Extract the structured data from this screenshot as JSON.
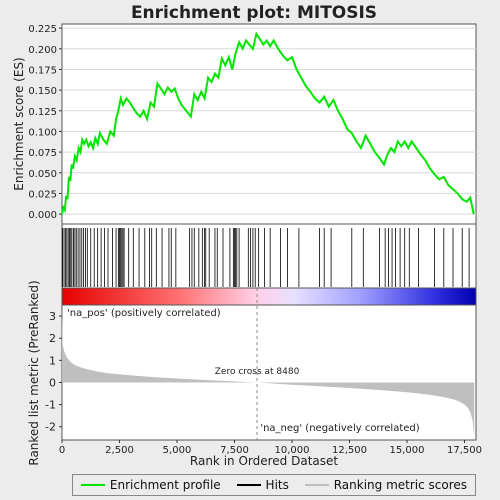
{
  "colors": {
    "profile": "#00e600",
    "hits": "#000000",
    "metric": "#bfbfbf",
    "pos_label": "#cc0000",
    "neg_label": "#0000cc",
    "zero_line": "#888888"
  },
  "legend": {
    "profile_label": "Enrichment profile",
    "hits_label": "Hits",
    "metric_label": "Ranking metric scores"
  },
  "chart_data": [
    {
      "type": "line",
      "title": "Enrichment plot: MITOSIS",
      "ylabel": "Enrichment score (ES)",
      "xlim": [
        0,
        18000
      ],
      "ylim": [
        -0.012,
        0.23
      ],
      "yticks": [
        0.0,
        0.025,
        0.05,
        0.075,
        0.1,
        0.125,
        0.15,
        0.175,
        0.2,
        0.225
      ],
      "ytick_labels": [
        "0.000",
        "0.025",
        "0.050",
        "0.075",
        "0.100",
        "0.125",
        "0.150",
        "0.175",
        "0.200",
        "0.225"
      ],
      "series": [
        {
          "name": "Enrichment profile",
          "x": [
            0,
            60,
            120,
            180,
            240,
            300,
            360,
            420,
            480,
            560,
            640,
            720,
            800,
            880,
            960,
            1050,
            1150,
            1250,
            1350,
            1450,
            1550,
            1650,
            1800,
            1950,
            2100,
            2250,
            2350,
            2450,
            2550,
            2650,
            2800,
            2950,
            3100,
            3250,
            3400,
            3550,
            3700,
            3850,
            4000,
            4150,
            4300,
            4450,
            4600,
            4750,
            4900,
            5050,
            5200,
            5400,
            5600,
            5750,
            5900,
            6050,
            6200,
            6350,
            6500,
            6650,
            6800,
            6950,
            7100,
            7250,
            7400,
            7550,
            7700,
            7850,
            8000,
            8150,
            8300,
            8450,
            8600,
            8750,
            8900,
            9050,
            9200,
            9400,
            9600,
            9800,
            10000,
            10200,
            10400,
            10600,
            10800,
            11000,
            11200,
            11400,
            11600,
            11800,
            12000,
            12200,
            12400,
            12600,
            12800,
            13000,
            13200,
            13400,
            13600,
            13800,
            14000,
            14150,
            14300,
            14450,
            14600,
            14750,
            14900,
            15050,
            15200,
            15400,
            15600,
            15800,
            16000,
            16200,
            16400,
            16600,
            16800,
            17000,
            17200,
            17400,
            17600,
            17750,
            17900
          ],
          "y": [
            0.0,
            0.008,
            0.005,
            0.022,
            0.018,
            0.045,
            0.04,
            0.06,
            0.055,
            0.07,
            0.065,
            0.08,
            0.075,
            0.09,
            0.085,
            0.09,
            0.082,
            0.087,
            0.08,
            0.092,
            0.085,
            0.098,
            0.09,
            0.085,
            0.1,
            0.095,
            0.115,
            0.125,
            0.14,
            0.132,
            0.14,
            0.135,
            0.128,
            0.122,
            0.118,
            0.125,
            0.115,
            0.135,
            0.13,
            0.158,
            0.152,
            0.145,
            0.153,
            0.148,
            0.152,
            0.14,
            0.132,
            0.125,
            0.118,
            0.145,
            0.138,
            0.148,
            0.14,
            0.165,
            0.16,
            0.17,
            0.165,
            0.188,
            0.18,
            0.19,
            0.175,
            0.195,
            0.208,
            0.2,
            0.21,
            0.205,
            0.2,
            0.218,
            0.212,
            0.205,
            0.21,
            0.203,
            0.21,
            0.2,
            0.192,
            0.186,
            0.19,
            0.175,
            0.165,
            0.155,
            0.148,
            0.14,
            0.135,
            0.142,
            0.13,
            0.138,
            0.125,
            0.115,
            0.103,
            0.098,
            0.088,
            0.08,
            0.095,
            0.085,
            0.075,
            0.068,
            0.06,
            0.072,
            0.08,
            0.075,
            0.088,
            0.082,
            0.088,
            0.08,
            0.088,
            0.08,
            0.072,
            0.065,
            0.055,
            0.048,
            0.042,
            0.045,
            0.035,
            0.03,
            0.025,
            0.018,
            0.015,
            0.02,
            0.0
          ]
        }
      ]
    },
    {
      "type": "table",
      "title": "Hits",
      "hit_ranks": [
        30,
        90,
        150,
        210,
        270,
        330,
        380,
        430,
        500,
        560,
        620,
        700,
        780,
        860,
        940,
        1020,
        1100,
        1250,
        1400,
        1550,
        1700,
        1850,
        2000,
        2200,
        2350,
        2450,
        2500,
        2550,
        2600,
        2650,
        2700,
        2900,
        3100,
        3350,
        3600,
        3800,
        3900,
        4100,
        4350,
        4650,
        4750,
        4950,
        5550,
        5650,
        5750,
        5950,
        6100,
        6200,
        6250,
        6400,
        6650,
        6750,
        7000,
        7300,
        7450,
        7500,
        7550,
        7600,
        7700,
        8100,
        8200,
        8300,
        8400,
        8550,
        8800,
        9050,
        9500,
        9800,
        10300,
        11200,
        11400,
        11700,
        12600,
        13100,
        13800,
        14050,
        14200,
        14350,
        14500,
        14700,
        14900,
        15100,
        15500,
        16200,
        16600,
        17000,
        17400,
        17700
      ]
    },
    {
      "type": "area",
      "ylabel": "Ranked list metric (PreRanked)",
      "xlabel": "Rank in Ordered Dataset",
      "xlim": [
        0,
        18000
      ],
      "ylim": [
        -2.6,
        3.5
      ],
      "xticks": [
        0,
        2500,
        5000,
        7500,
        10000,
        12500,
        15000,
        17500
      ],
      "xtick_labels": [
        "0",
        "2,500",
        "5,000",
        "7,500",
        "10,000",
        "12,500",
        "15,000",
        "17,500"
      ],
      "yticks": [
        -2,
        -1,
        0,
        1,
        2,
        3
      ],
      "ytick_labels": [
        "-2",
        "-1",
        "0",
        "1",
        "2",
        "3"
      ],
      "x": [
        0,
        30,
        100,
        200,
        350,
        500,
        700,
        1000,
        1500,
        2000,
        3000,
        4000,
        5000,
        6000,
        7000,
        8000,
        8480,
        9000,
        10000,
        11000,
        12000,
        13000,
        14000,
        15000,
        15500,
        16000,
        16500,
        17000,
        17300,
        17500,
        17650,
        17750,
        17850,
        17920
      ],
      "values": [
        3.3,
        1.7,
        1.4,
        1.15,
        0.95,
        0.82,
        0.72,
        0.62,
        0.5,
        0.42,
        0.32,
        0.24,
        0.18,
        0.12,
        0.07,
        0.02,
        0.0,
        -0.04,
        -0.1,
        -0.16,
        -0.22,
        -0.28,
        -0.36,
        -0.44,
        -0.5,
        -0.56,
        -0.64,
        -0.76,
        -0.88,
        -1.0,
        -1.15,
        -1.35,
        -1.7,
        -2.4
      ],
      "zero_cross_label": "Zero cross at 8480",
      "zero_cross": 8480,
      "pos_label": "'na_pos' (positively correlated)",
      "neg_label": "'na_neg' (negatively correlated)"
    }
  ]
}
